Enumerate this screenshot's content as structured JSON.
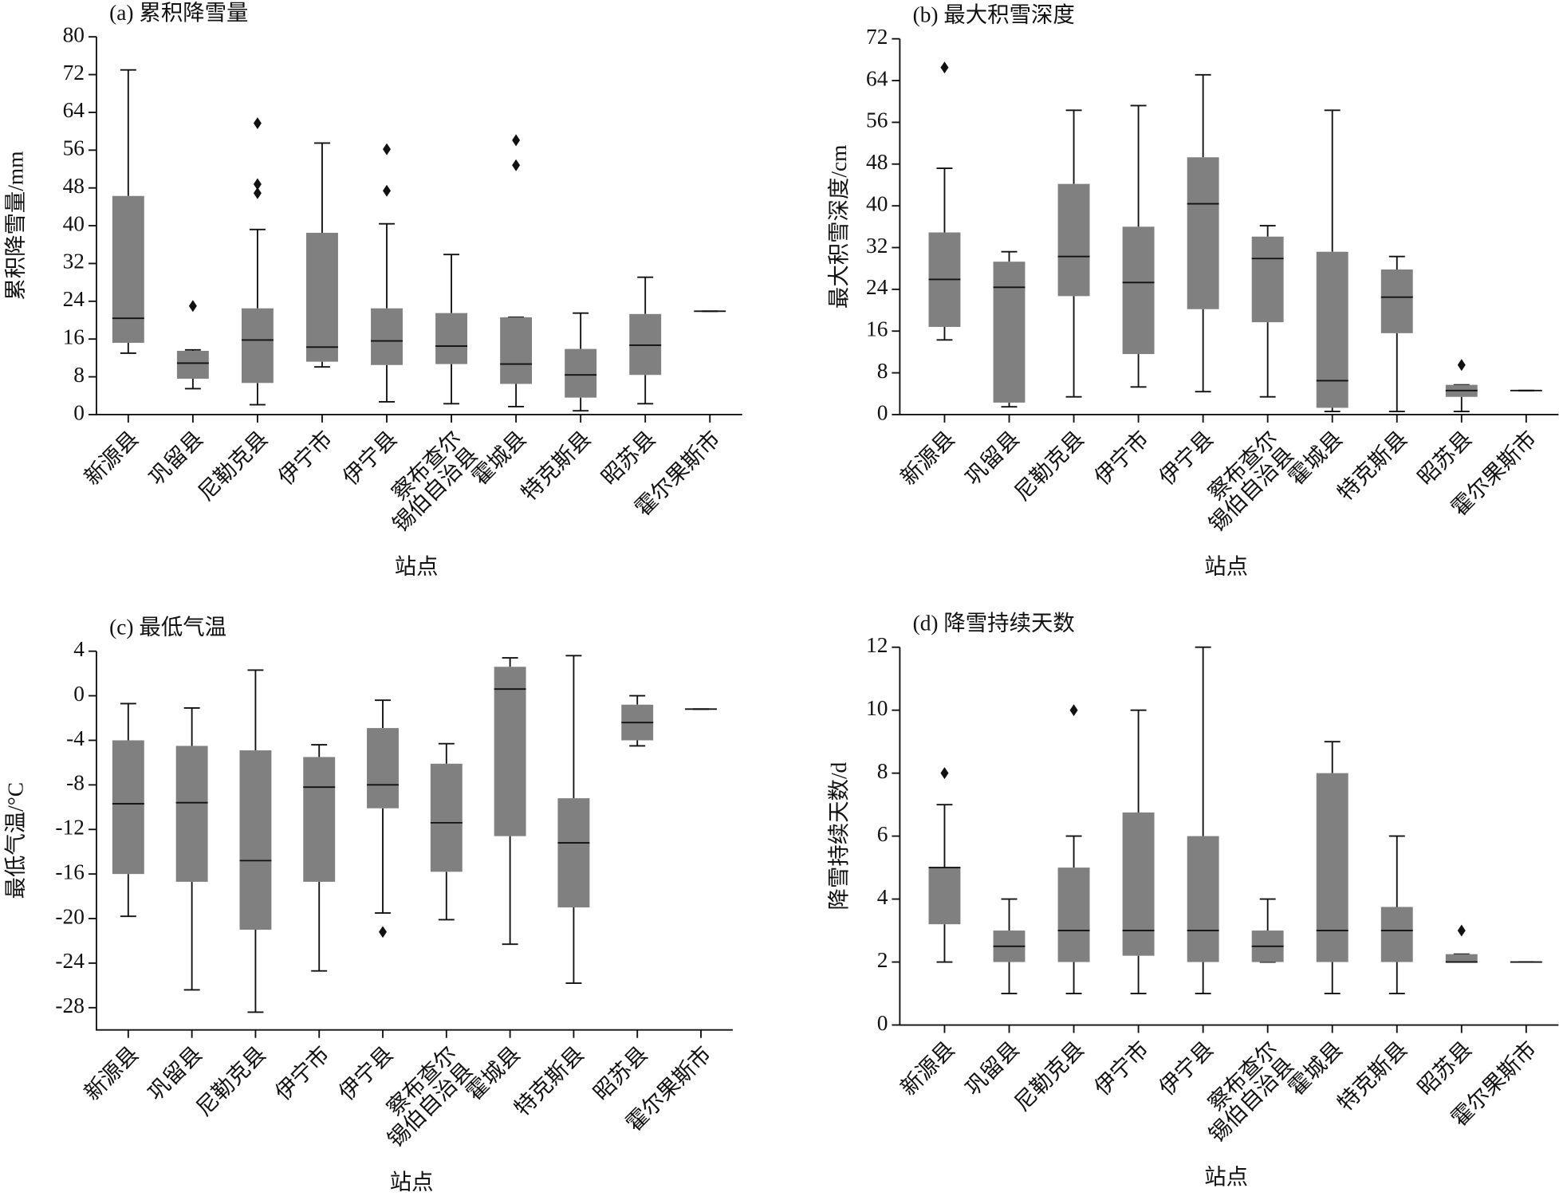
{
  "chart_data": [
    {
      "type": "box",
      "title": "(a) 累积降雪量",
      "xlabel": "站点",
      "ylabel": "累积降雪量/mm",
      "color": "#808080",
      "categories": [
        "新源县",
        "巩留县",
        "尼勒克县",
        "伊宁市",
        "伊宁县",
        "察布查尔\n锡伯自治县",
        "霍城县",
        "特克斯县",
        "昭苏县",
        "霍尔果斯市"
      ],
      "ylim": [
        0,
        80
      ],
      "yticks": [
        0,
        8,
        16,
        24,
        32,
        40,
        48,
        56,
        64,
        72,
        80
      ],
      "boxes": [
        {
          "whislo": 13,
          "q1": 15.2,
          "med": 20.4,
          "q3": 46.3,
          "whishi": 73,
          "fliers": []
        },
        {
          "whislo": 5.5,
          "q1": 7.6,
          "med": 10.9,
          "q3": 13.5,
          "whishi": 13.7,
          "fliers": [
            23
          ]
        },
        {
          "whislo": 2.1,
          "q1": 6.7,
          "med": 15.8,
          "q3": 22.5,
          "whishi": 39.2,
          "fliers": [
            61.7,
            48.8,
            46.9
          ]
        },
        {
          "whislo": 10.1,
          "q1": 11.2,
          "med": 14.3,
          "q3": 38.5,
          "whishi": 57.5,
          "fliers": []
        },
        {
          "whislo": 2.7,
          "q1": 10.5,
          "med": 15.6,
          "q3": 22.5,
          "whishi": 40.4,
          "fliers": [
            56.2,
            47.4
          ]
        },
        {
          "whislo": 2.3,
          "q1": 10.7,
          "med": 14.5,
          "q3": 21.5,
          "whishi": 33.9,
          "fliers": []
        },
        {
          "whislo": 1.7,
          "q1": 6.5,
          "med": 10.7,
          "q3": 20.6,
          "whishi": 20.6,
          "fliers": [
            58.1,
            52.8
          ]
        },
        {
          "whislo": 0.8,
          "q1": 3.6,
          "med": 8.4,
          "q3": 13.9,
          "whishi": 21.5,
          "fliers": []
        },
        {
          "whislo": 2.3,
          "q1": 8.4,
          "med": 14.7,
          "q3": 21.3,
          "whishi": 29.1,
          "fliers": []
        },
        {
          "whislo": 21.9,
          "q1": 21.9,
          "med": 21.9,
          "q3": 21.9,
          "whishi": 21.9,
          "fliers": []
        }
      ]
    },
    {
      "type": "box",
      "title": "(b) 最大积雪深度",
      "xlabel": "站点",
      "ylabel": "最大积雪深度/cm",
      "color": "#808080",
      "categories": [
        "新源县",
        "巩留县",
        "尼勒克县",
        "伊宁市",
        "伊宁县",
        "察布查尔\n锡伯自治县",
        "霍城县",
        "特克斯县",
        "昭苏县",
        "霍尔果斯市"
      ],
      "ylim": [
        0,
        72
      ],
      "yticks": [
        0,
        8,
        16,
        24,
        32,
        40,
        48,
        56,
        64,
        72
      ],
      "boxes": [
        {
          "whislo": 14.3,
          "q1": 16.8,
          "med": 25.9,
          "q3": 34.9,
          "whishi": 47.2,
          "fliers": [
            66.5
          ]
        },
        {
          "whislo": 1.5,
          "q1": 2.3,
          "med": 24.4,
          "q3": 29.3,
          "whishi": 31.2,
          "fliers": []
        },
        {
          "whislo": 3.4,
          "q1": 22.7,
          "med": 30.3,
          "q3": 44.2,
          "whishi": 58.3,
          "fliers": []
        },
        {
          "whislo": 5.3,
          "q1": 11.6,
          "med": 25.3,
          "q3": 36,
          "whishi": 59.2,
          "fliers": []
        },
        {
          "whislo": 4.4,
          "q1": 20.2,
          "med": 40.4,
          "q3": 49.3,
          "whishi": 65.1,
          "fliers": []
        },
        {
          "whislo": 3.4,
          "q1": 17.7,
          "med": 29.9,
          "q3": 34.1,
          "whishi": 36.2,
          "fliers": []
        },
        {
          "whislo": 0.6,
          "q1": 1.3,
          "med": 6.5,
          "q3": 31.2,
          "whishi": 58.3,
          "fliers": []
        },
        {
          "whislo": 0.6,
          "q1": 15.6,
          "med": 22.5,
          "q3": 27.8,
          "whishi": 30.3,
          "fliers": []
        },
        {
          "whislo": 0.6,
          "q1": 3.4,
          "med": 4.6,
          "q3": 5.7,
          "whishi": 5.7,
          "fliers": [
            9.5
          ]
        },
        {
          "whislo": 4.6,
          "q1": 4.6,
          "med": 4.6,
          "q3": 4.6,
          "whishi": 4.6,
          "fliers": []
        }
      ]
    },
    {
      "type": "box",
      "title": "(c) 最低气温",
      "xlabel": "站点",
      "ylabel": "最低气温/°C",
      "color": "#808080",
      "categories": [
        "新源县",
        "巩留县",
        "尼勒克县",
        "伊宁市",
        "伊宁县",
        "察布查尔\n锡伯自治县",
        "霍城县",
        "特克斯县",
        "昭苏县",
        "霍尔果斯市"
      ],
      "ylim": [
        -30,
        4
      ],
      "yticks": [
        -28,
        -24,
        -20,
        -16,
        -12,
        -8,
        -4,
        0,
        4
      ],
      "boxes": [
        {
          "whislo": -19.8,
          "q1": -16.0,
          "med": -9.7,
          "q3": -4.0,
          "whishi": -0.7,
          "fliers": []
        },
        {
          "whislo": -26.4,
          "q1": -16.7,
          "med": -9.6,
          "q3": -4.5,
          "whishi": -1.1,
          "fliers": []
        },
        {
          "whislo": -28.4,
          "q1": -21.0,
          "med": -14.8,
          "q3": -4.9,
          "whishi": 2.3,
          "fliers": []
        },
        {
          "whislo": -24.7,
          "q1": -16.7,
          "med": -8.2,
          "q3": -5.5,
          "whishi": -4.4,
          "fliers": []
        },
        {
          "whislo": -19.5,
          "q1": -10.1,
          "med": -8.0,
          "q3": -2.9,
          "whishi": -0.4,
          "fliers": [
            -21.2
          ]
        },
        {
          "whislo": -20.1,
          "q1": -15.8,
          "med": -11.4,
          "q3": -6.1,
          "whishi": -4.3,
          "fliers": []
        },
        {
          "whislo": -22.3,
          "q1": -12.6,
          "med": 0.6,
          "q3": 2.6,
          "whishi": 3.4,
          "fliers": []
        },
        {
          "whislo": -25.8,
          "q1": -19.0,
          "med": -13.2,
          "q3": -9.2,
          "whishi": 3.6,
          "fliers": []
        },
        {
          "whislo": -4.5,
          "q1": -4.0,
          "med": -2.4,
          "q3": -0.8,
          "whishi": 0,
          "fliers": []
        },
        {
          "whislo": -1.2,
          "q1": -1.2,
          "med": -1.2,
          "q3": -1.2,
          "whishi": -1.2,
          "fliers": []
        }
      ]
    },
    {
      "type": "box",
      "title": "(d) 降雪持续天数",
      "xlabel": "站点",
      "ylabel": "降雪持续天数/d",
      "color": "#808080",
      "categories": [
        "新源县",
        "巩留县",
        "尼勒克县",
        "伊宁市",
        "伊宁县",
        "察布查尔\n锡伯自治县",
        "霍城县",
        "特克斯县",
        "昭苏县",
        "霍尔果斯市"
      ],
      "ylim": [
        0,
        12
      ],
      "yticks": [
        0,
        2,
        4,
        6,
        8,
        10,
        12
      ],
      "boxes": [
        {
          "whislo": 2,
          "q1": 3.2,
          "med": 5,
          "q3": 5,
          "whishi": 7,
          "fliers": [
            8
          ]
        },
        {
          "whislo": 1,
          "q1": 2,
          "med": 2.5,
          "q3": 3,
          "whishi": 4,
          "fliers": []
        },
        {
          "whislo": 1,
          "q1": 2,
          "med": 3,
          "q3": 5,
          "whishi": 6,
          "fliers": [
            10
          ]
        },
        {
          "whislo": 1,
          "q1": 2.2,
          "med": 3,
          "q3": 6.75,
          "whishi": 10,
          "fliers": []
        },
        {
          "whislo": 1,
          "q1": 2,
          "med": 3,
          "q3": 6,
          "whishi": 12,
          "fliers": []
        },
        {
          "whislo": 2,
          "q1": 2,
          "med": 2.5,
          "q3": 3,
          "whishi": 4,
          "fliers": []
        },
        {
          "whislo": 1,
          "q1": 2,
          "med": 3,
          "q3": 8,
          "whishi": 9,
          "fliers": []
        },
        {
          "whislo": 1,
          "q1": 2,
          "med": 3,
          "q3": 3.75,
          "whishi": 6,
          "fliers": []
        },
        {
          "whislo": 2,
          "q1": 2,
          "med": 2,
          "q3": 2.25,
          "whishi": 2.25,
          "fliers": [
            3
          ]
        },
        {
          "whislo": 2,
          "q1": 2,
          "med": 2,
          "q3": 2,
          "whishi": 2,
          "fliers": []
        }
      ]
    }
  ]
}
